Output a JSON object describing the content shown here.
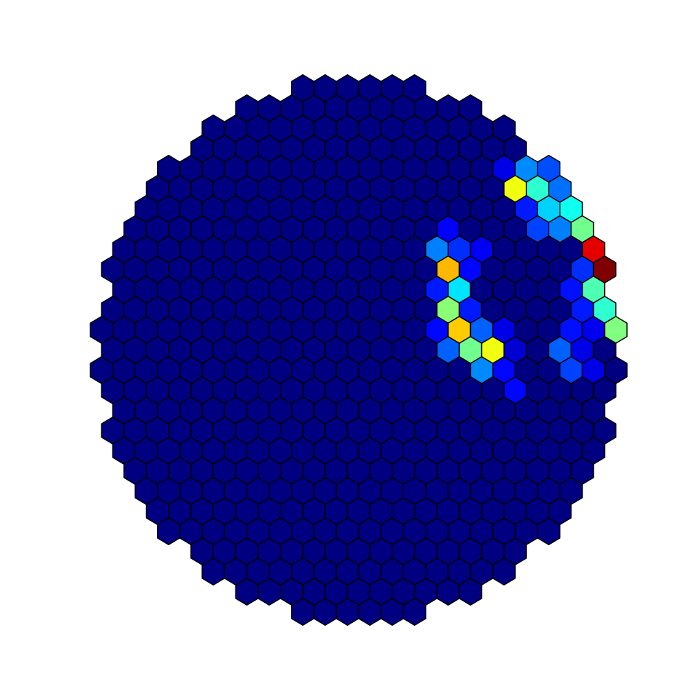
{
  "chart_data": {
    "type": "hexcamera",
    "colormap": "jet",
    "vmin": 0,
    "vmax": 1,
    "rows": [
      [
        0,
        0,
        0,
        0,
        0,
        0
      ],
      [
        0,
        0,
        0,
        0,
        0,
        0,
        0,
        0,
        0,
        0,
        0
      ],
      [
        0,
        0,
        0,
        0,
        0,
        0,
        0,
        0,
        0,
        0,
        0,
        0,
        0,
        0
      ],
      [
        0,
        0,
        0,
        0,
        0,
        0,
        0,
        0,
        0,
        0,
        0,
        0,
        0,
        0,
        0
      ],
      [
        0,
        0,
        0,
        0,
        0,
        0,
        0,
        0,
        0,
        0,
        0,
        0,
        0,
        0,
        0,
        0.1,
        0.26,
        0.2
      ],
      [
        0,
        0,
        0,
        0,
        0,
        0,
        0,
        0,
        0,
        0,
        0,
        0,
        0,
        0,
        0,
        0,
        0.61,
        0.42,
        0.235
      ],
      [
        0,
        0,
        0,
        0,
        0,
        0,
        0,
        0,
        0,
        0,
        0,
        0,
        0,
        0,
        0,
        0,
        0,
        0.15,
        0.33,
        0.39
      ],
      [
        0,
        0,
        0,
        0,
        0,
        0,
        0,
        0,
        0,
        0,
        0,
        0,
        0,
        0,
        0.125,
        0,
        0,
        0,
        0.19,
        0.25,
        0.485
      ],
      [
        0,
        0,
        0,
        0,
        0,
        0,
        0,
        0,
        0,
        0,
        0,
        0,
        0,
        0,
        0.25,
        0.17,
        0.12,
        0,
        0,
        0,
        0,
        0.9
      ],
      [
        0,
        0,
        0,
        0,
        0,
        0,
        0,
        0,
        0,
        0,
        0,
        0,
        0,
        0,
        0,
        0.695,
        0.13,
        0,
        0,
        0,
        0,
        0.17,
        1
      ],
      [
        0,
        0,
        0,
        0,
        0,
        0,
        0,
        0,
        0,
        0,
        0,
        0,
        0,
        0,
        0.15,
        0.35,
        0,
        0,
        0,
        0,
        0.14,
        0.45
      ],
      [
        0,
        0,
        0,
        0,
        0,
        0,
        0,
        0,
        0,
        0,
        0,
        0,
        0,
        0,
        0,
        0.51,
        0.15,
        0,
        0,
        0,
        0,
        0.15,
        0.42
      ],
      [
        0,
        0,
        0,
        0,
        0,
        0,
        0,
        0,
        0,
        0,
        0,
        0,
        0,
        0,
        0,
        0.13,
        0.675,
        0.22,
        0.1,
        0,
        0,
        0.14,
        0.11,
        0.5
      ],
      [
        0,
        0,
        0,
        0,
        0,
        0,
        0,
        0,
        0,
        0,
        0,
        0,
        0,
        0,
        0,
        0.22,
        0.485,
        0.61,
        0.08,
        0,
        0.22,
        0.1,
        0
      ],
      [
        0,
        0,
        0,
        0,
        0,
        0,
        0,
        0,
        0,
        0,
        0,
        0,
        0,
        0,
        0,
        0,
        0,
        0.26,
        0.13,
        0,
        0,
        0.19,
        0.1,
        0
      ],
      [
        0,
        0,
        0,
        0,
        0,
        0,
        0,
        0,
        0,
        0,
        0,
        0,
        0,
        0,
        0,
        0,
        0,
        0,
        0.13,
        0,
        0,
        0,
        0
      ],
      [
        0,
        0,
        0,
        0,
        0,
        0,
        0,
        0,
        0,
        0,
        0,
        0,
        0,
        0,
        0,
        0,
        0,
        0,
        0,
        0,
        0,
        0
      ],
      [
        0,
        0,
        0,
        0,
        0,
        0,
        0,
        0,
        0,
        0,
        0,
        0,
        0,
        0,
        0,
        0,
        0,
        0,
        0,
        0,
        0,
        0,
        0
      ],
      [
        0,
        0,
        0,
        0,
        0,
        0,
        0,
        0,
        0,
        0,
        0,
        0,
        0,
        0,
        0,
        0,
        0,
        0,
        0,
        0,
        0,
        0
      ],
      [
        0,
        0,
        0,
        0,
        0,
        0,
        0,
        0,
        0,
        0,
        0,
        0,
        0,
        0,
        0,
        0,
        0,
        0,
        0,
        0,
        0
      ],
      [
        0,
        0,
        0,
        0,
        0,
        0,
        0,
        0,
        0,
        0,
        0,
        0,
        0,
        0,
        0,
        0,
        0,
        0,
        0,
        0
      ],
      [
        0,
        0,
        0,
        0,
        0,
        0,
        0,
        0,
        0,
        0,
        0,
        0,
        0,
        0,
        0,
        0,
        0,
        0,
        0
      ],
      [
        0,
        0,
        0,
        0,
        0,
        0,
        0,
        0,
        0,
        0,
        0,
        0,
        0,
        0,
        0,
        0,
        0,
        0
      ],
      [
        0,
        0,
        0,
        0,
        0,
        0,
        0,
        0,
        0,
        0,
        0,
        0,
        0,
        0,
        0
      ],
      [
        0,
        0,
        0,
        0,
        0,
        0,
        0,
        0,
        0,
        0,
        0,
        0,
        0,
        0
      ],
      [
        0,
        0,
        0,
        0,
        0,
        0,
        0,
        0,
        0,
        0,
        0
      ],
      [
        0,
        0,
        0,
        0,
        0,
        0
      ]
    ]
  }
}
